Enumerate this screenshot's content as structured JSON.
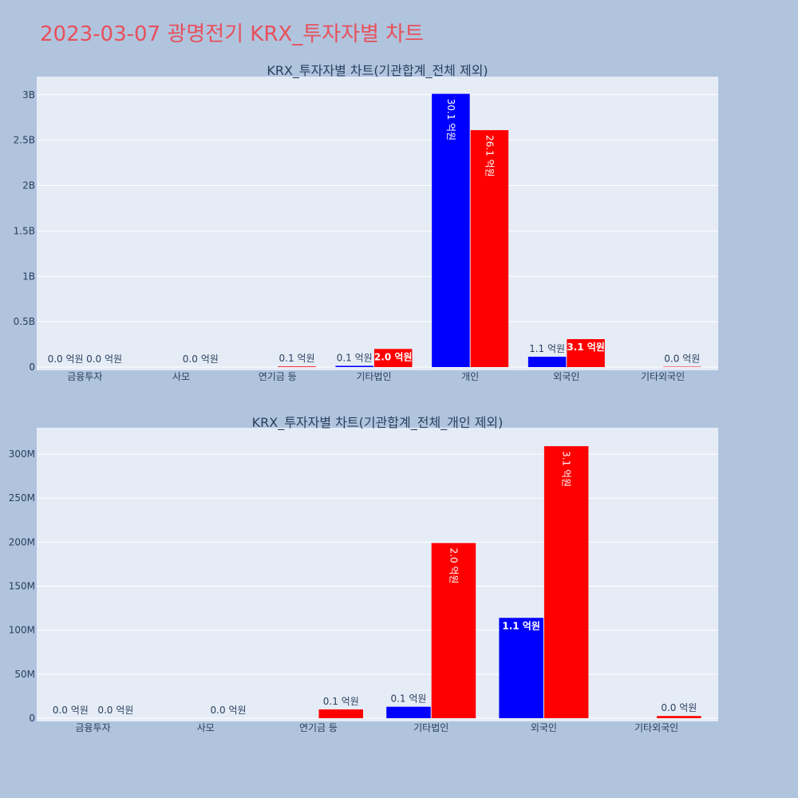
{
  "page": {
    "title": "2023-03-07 광명전기 KRX_투자자별 차트"
  },
  "colors": {
    "background": "#b0c4de",
    "plot_bg": "#e5ecf6",
    "title": "#e8505b",
    "buy": "#0000ff",
    "sell": "#ff0000",
    "grid": "#ffffff",
    "text": "#2a3f5f"
  },
  "chart_data": [
    {
      "type": "bar",
      "title": "KRX_투자자별 차트(기관합계_전체 제외)",
      "categories": [
        "금융투자",
        "사모",
        "연기금 등",
        "기타법인",
        "개인",
        "외국인",
        "기타외국인"
      ],
      "series": [
        {
          "color": "#0000ff",
          "values": [
            0.0,
            0.0,
            0.0,
            14000000,
            3010000000,
            114000000,
            0.0
          ],
          "labels": [
            "0.0 억원",
            "",
            "",
            "0.1 억원",
            "30.1 억원",
            "1.1 억원",
            ""
          ]
        },
        {
          "color": "#ff0000",
          "values": [
            0.0,
            0.0,
            7000000,
            200000000,
            2610000000,
            308000000,
            4000000
          ],
          "labels": [
            "0.0 억원",
            "0.0 억원",
            "0.1 억원",
            "2.0 억원",
            "26.1 억원",
            "3.1 억원",
            "0.0 억원"
          ]
        }
      ],
      "ylim": [
        0,
        3200000000
      ],
      "yticks": [
        0,
        500000000,
        1000000000,
        1500000000,
        2000000000,
        2500000000,
        3000000000
      ],
      "ytick_labels": [
        "0",
        "0.5B",
        "1B",
        "1.5B",
        "2B",
        "2.5B",
        "3B"
      ],
      "grid": true
    },
    {
      "type": "bar",
      "title": "KRX_투자자별 차트(기관합계_전체_개인 제외)",
      "categories": [
        "금융투자",
        "사모",
        "연기금 등",
        "기타법인",
        "외국인",
        "기타외국인"
      ],
      "series": [
        {
          "color": "#0000ff",
          "values": [
            0.0,
            0.0,
            0.0,
            13000000,
            114000000,
            0.0
          ],
          "labels": [
            "0.0 억원",
            "",
            "",
            "0.1 억원",
            "1.1 억원",
            ""
          ]
        },
        {
          "color": "#ff0000",
          "values": [
            0.0,
            0.0,
            10000000,
            199000000,
            309000000,
            2500000
          ],
          "labels": [
            "0.0 억원",
            "0.0 억원",
            "0.1 억원",
            "2.0 억원",
            "3.1 억원",
            "0.0 억원"
          ]
        }
      ],
      "ylim": [
        0,
        330000000
      ],
      "yticks": [
        0,
        50000000,
        100000000,
        150000000,
        200000000,
        250000000,
        300000000
      ],
      "ytick_labels": [
        "0",
        "50M",
        "100M",
        "150M",
        "200M",
        "250M",
        "300M"
      ],
      "grid": true
    }
  ]
}
